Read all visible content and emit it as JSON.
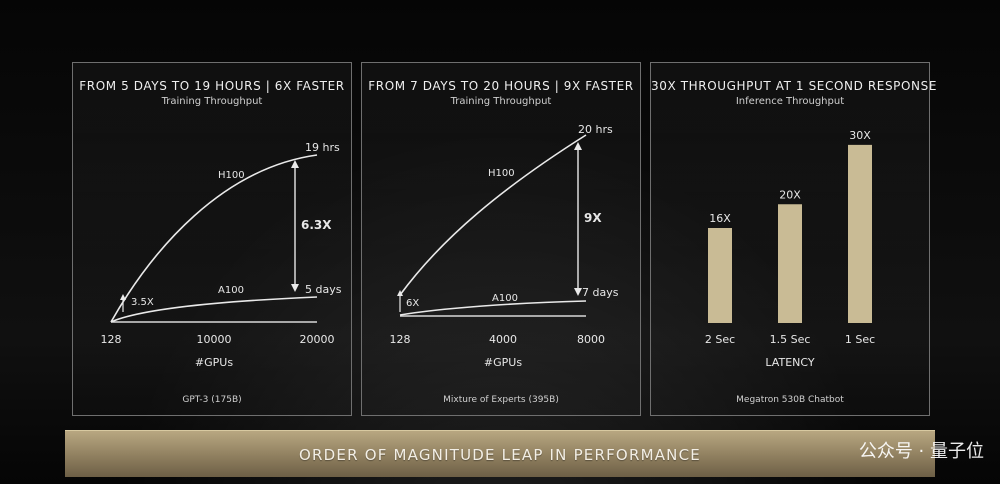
{
  "chart_data": [
    {
      "type": "line",
      "title": "FROM 5 DAYS TO 19 HOURS | 6X FASTER",
      "subtitle": "Training Throughput",
      "xlabel": "#GPUs",
      "x_ticks": [
        "128",
        "10000",
        "20000"
      ],
      "series": [
        {
          "name": "H100",
          "end_label": "19 hrs"
        },
        {
          "name": "A100",
          "end_label": "5 days"
        }
      ],
      "annotations": [
        "3.5X",
        "6.3X"
      ],
      "footer": "GPT-3 (175B)"
    },
    {
      "type": "line",
      "title": "FROM 7 DAYS TO 20 HOURS | 9X FASTER",
      "subtitle": "Training Throughput",
      "xlabel": "#GPUs",
      "x_ticks": [
        "128",
        "4000",
        "8000"
      ],
      "series": [
        {
          "name": "H100",
          "end_label": "20 hrs"
        },
        {
          "name": "A100",
          "end_label": "7 days"
        }
      ],
      "annotations": [
        "6X",
        "9X"
      ],
      "footer": "Mixture of Experts (395B)"
    },
    {
      "type": "bar",
      "title": "30X THROUGHPUT AT 1 SECOND RESPONSE",
      "subtitle": "Inference Throughput",
      "xlabel": "LATENCY",
      "categories": [
        "2 Sec",
        "1.5 Sec",
        "1 Sec"
      ],
      "values": [
        16,
        20,
        30
      ],
      "value_labels": [
        "16X",
        "20X",
        "30X"
      ],
      "ylim": [
        0,
        32
      ],
      "bar_color": "#c9bb95",
      "footer": "Megatron 530B Chatbot"
    }
  ],
  "banner": "ORDER OF MAGNITUDE LEAP IN PERFORMANCE",
  "watermark": "公众号 · 量子位"
}
